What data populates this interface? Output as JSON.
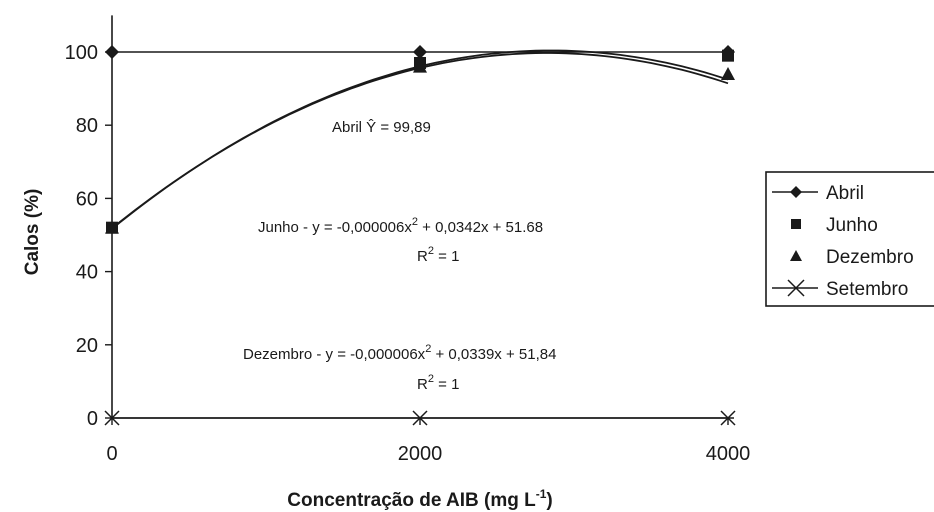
{
  "chart_data": {
    "type": "line",
    "title": "",
    "xlabel": "Concentração de AIB (mg L⁻¹)",
    "ylabel": "Calos (%)",
    "x": [
      0,
      2000,
      4000
    ],
    "x_ticks": [
      "0",
      "2000",
      "4000"
    ],
    "y_ticks": [
      "0",
      "20",
      "40",
      "60",
      "80",
      "100"
    ],
    "xlim": [
      0,
      4000
    ],
    "ylim": [
      0,
      110
    ],
    "grid": false,
    "legend_position": "right",
    "series": [
      {
        "name": "Abril",
        "marker": "diamond",
        "values": [
          100,
          100,
          100
        ],
        "fit": {
          "type": "constant",
          "value": 99.89
        }
      },
      {
        "name": "Junho",
        "marker": "square",
        "values": [
          52,
          97,
          99
        ],
        "fit": {
          "type": "quadratic",
          "a": -6e-06,
          "b": 0.0342,
          "c": 51.68
        }
      },
      {
        "name": "Dezembro",
        "marker": "triangle",
        "values": [
          52,
          96,
          94
        ],
        "fit": {
          "type": "quadratic",
          "a": -6e-06,
          "b": 0.0339,
          "c": 51.84
        }
      },
      {
        "name": "Setembro",
        "marker": "x",
        "values": [
          0,
          0,
          0
        ]
      }
    ],
    "annotations": {
      "abril": "Abril Ŷ = 99,89",
      "junho_eq_pre": "Junho - y = -0,000006x",
      "junho_eq_post": " + 0,0342x + 51.68",
      "junho_r2_pre": "R",
      "junho_r2_post": " = 1",
      "dez_eq_pre": "Dezembro - y = -0,000006x",
      "dez_eq_post": " + 0,0339x + 51,84",
      "dez_r2_pre": "R",
      "dez_r2_post": " = 1",
      "superscript_2": "2"
    },
    "xlabel_pre": "Concentração de AIB (mg L",
    "xlabel_sup": "-1",
    "xlabel_post": ")"
  },
  "colors": {
    "ink": "#1a1a1a",
    "background": "#ffffff"
  }
}
